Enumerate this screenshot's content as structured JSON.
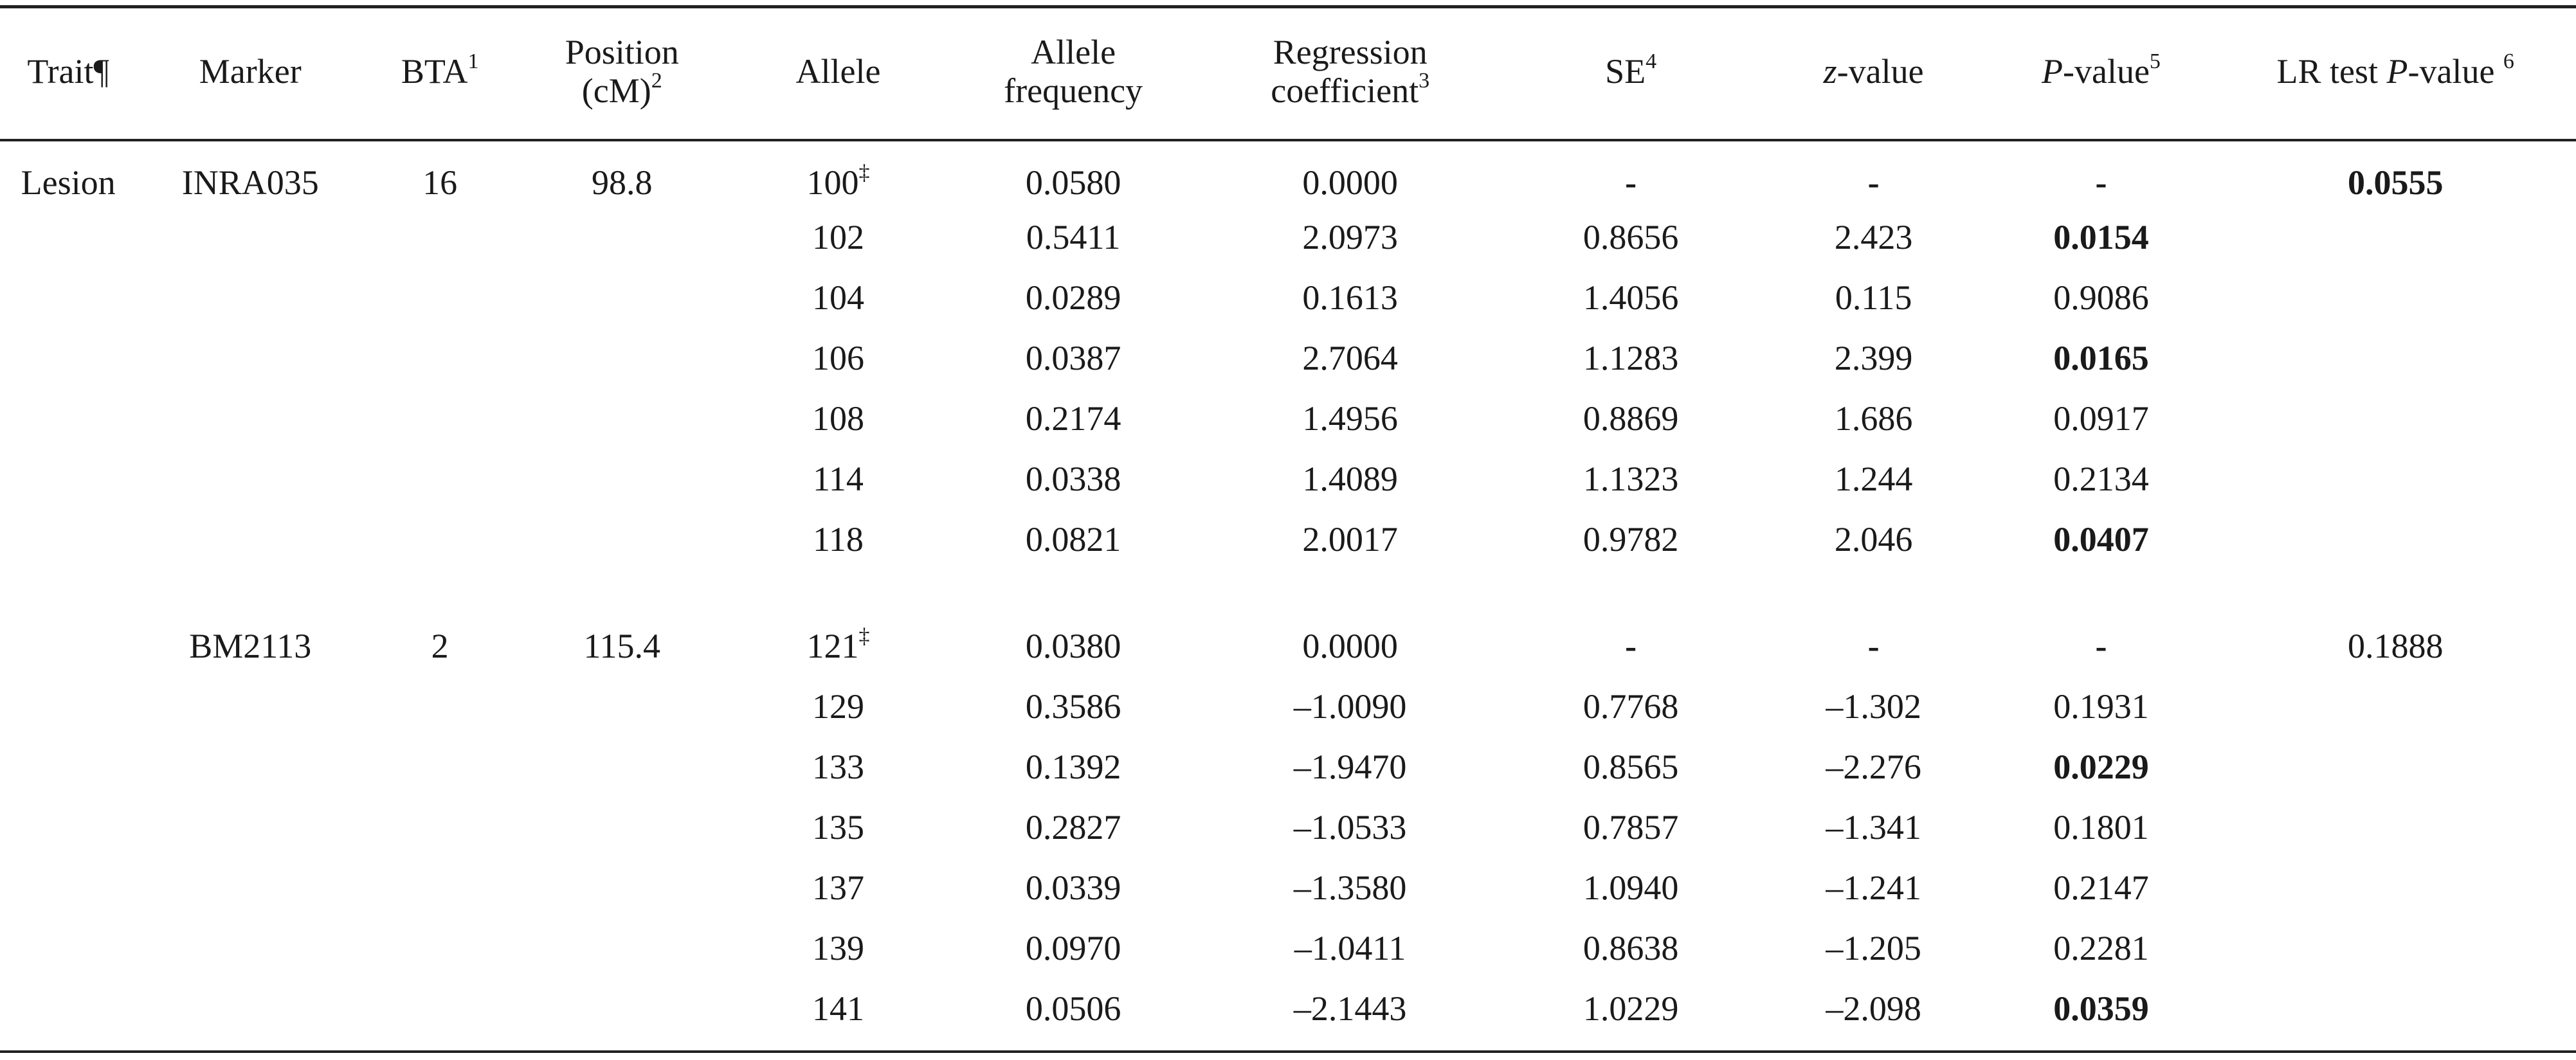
{
  "table": {
    "headers": {
      "trait": "Trait¶",
      "marker": "Marker",
      "bta": "BTA",
      "bta_sup": "1",
      "position_line1": "Position",
      "position_line2": "(cM)",
      "position_sup": "2",
      "allele": "Allele",
      "allele_freq_line1": "Allele",
      "allele_freq_line2": "frequency",
      "regression_line1": "Regression",
      "regression_line2": "coefficient",
      "regression_sup": "3",
      "se": "SE",
      "se_sup": "4",
      "z_italic": "z",
      "z_rest": "-value",
      "p_italic": "P",
      "p_rest": "-value",
      "p_sup": "5",
      "lr_prefix": "LR test ",
      "lr_italic": "P",
      "lr_rest": "-value ",
      "lr_sup": "6"
    },
    "groups": [
      {
        "trait": "Lesion",
        "marker": "INRA035",
        "bta": "16",
        "position": "98.8",
        "lr_pvalue": "0.0555",
        "lr_bold": true,
        "rows": [
          {
            "allele": "100",
            "ref": "‡",
            "freq": "0.0580",
            "coef": "0.0000",
            "se": "-",
            "z": "-",
            "p": "-",
            "p_bold": false
          },
          {
            "allele": "102",
            "ref": "",
            "freq": "0.5411",
            "coef": "2.0973",
            "se": "0.8656",
            "z": "2.423",
            "p": "0.0154",
            "p_bold": true
          },
          {
            "allele": "104",
            "ref": "",
            "freq": "0.0289",
            "coef": "0.1613",
            "se": "1.4056",
            "z": "0.115",
            "p": "0.9086",
            "p_bold": false
          },
          {
            "allele": "106",
            "ref": "",
            "freq": "0.0387",
            "coef": "2.7064",
            "se": "1.1283",
            "z": "2.399",
            "p": "0.0165",
            "p_bold": true
          },
          {
            "allele": "108",
            "ref": "",
            "freq": "0.2174",
            "coef": "1.4956",
            "se": "0.8869",
            "z": "1.686",
            "p": "0.0917",
            "p_bold": false
          },
          {
            "allele": "114",
            "ref": "",
            "freq": "0.0338",
            "coef": "1.4089",
            "se": "1.1323",
            "z": "1.244",
            "p": "0.2134",
            "p_bold": false
          },
          {
            "allele": "118",
            "ref": "",
            "freq": "0.0821",
            "coef": "2.0017",
            "se": "0.9782",
            "z": "2.046",
            "p": "0.0407",
            "p_bold": true
          }
        ]
      },
      {
        "trait": "",
        "marker": "BM2113",
        "bta": "2",
        "position": "115.4",
        "lr_pvalue": "0.1888",
        "lr_bold": false,
        "rows": [
          {
            "allele": "121",
            "ref": "‡",
            "freq": "0.0380",
            "coef": "0.0000",
            "se": "-",
            "z": "-",
            "p": "-",
            "p_bold": false
          },
          {
            "allele": "129",
            "ref": "",
            "freq": "0.3586",
            "coef": "–1.0090",
            "se": "0.7768",
            "z": "–1.302",
            "p": "0.1931",
            "p_bold": false
          },
          {
            "allele": "133",
            "ref": "",
            "freq": "0.1392",
            "coef": "–1.9470",
            "se": "0.8565",
            "z": "–2.276",
            "p": "0.0229",
            "p_bold": true
          },
          {
            "allele": "135",
            "ref": "",
            "freq": "0.2827",
            "coef": "–1.0533",
            "se": "0.7857",
            "z": "–1.341",
            "p": "0.1801",
            "p_bold": false
          },
          {
            "allele": "137",
            "ref": "",
            "freq": "0.0339",
            "coef": "–1.3580",
            "se": "1.0940",
            "z": "–1.241",
            "p": "0.2147",
            "p_bold": false
          },
          {
            "allele": "139",
            "ref": "",
            "freq": "0.0970",
            "coef": "–1.0411",
            "se": "0.8638",
            "z": "–1.205",
            "p": "0.2281",
            "p_bold": false
          },
          {
            "allele": "141",
            "ref": "",
            "freq": "0.0506",
            "coef": "–2.1443",
            "se": "1.0229",
            "z": "–2.098",
            "p": "0.0359",
            "p_bold": true
          }
        ]
      }
    ]
  }
}
